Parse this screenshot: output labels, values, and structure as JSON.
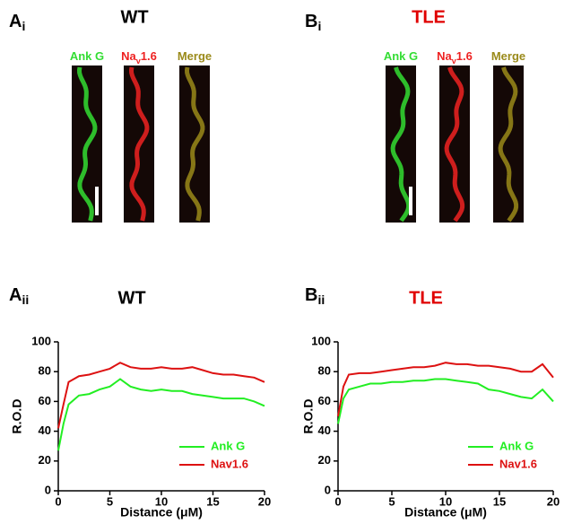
{
  "image_panels": [
    {
      "panel": {
        "letter": "A",
        "sub": "i"
      },
      "title": "WT",
      "title_color": "#000000",
      "channels": [
        {
          "label": {
            "base": "Ank G",
            "sub": "",
            "tail": ""
          },
          "color": "#33dd33"
        },
        {
          "label": {
            "base": "Na",
            "sub": "v",
            "tail": "1.6"
          },
          "color": "#ee2222"
        },
        {
          "label": {
            "base": "Merge",
            "sub": "",
            "tail": ""
          },
          "color": "#9a8a1a"
        }
      ]
    },
    {
      "panel": {
        "letter": "B",
        "sub": "i"
      },
      "title": "TLE",
      "title_color": "#e00000",
      "channels": [
        {
          "label": {
            "base": "Ank G",
            "sub": "",
            "tail": ""
          },
          "color": "#33dd33"
        },
        {
          "label": {
            "base": "Na",
            "sub": "v",
            "tail": "1.6"
          },
          "color": "#ee2222"
        },
        {
          "label": {
            "base": "Merge",
            "sub": "",
            "tail": ""
          },
          "color": "#9a8a1a"
        }
      ]
    }
  ],
  "chart_data": [
    {
      "type": "line",
      "panel": {
        "letter": "A",
        "sub": "ii"
      },
      "title": "WT",
      "title_color": "#000000",
      "xlabel": "Distance (μM)",
      "ylabel": "R.O.D",
      "x": [
        0,
        0.5,
        1,
        2,
        3,
        4,
        5,
        6,
        7,
        8,
        9,
        10,
        11,
        12,
        13,
        14,
        15,
        16,
        17,
        18,
        19,
        20
      ],
      "series": [
        {
          "name": "Ank G",
          "color": "#22ee22",
          "values": [
            27,
            45,
            58,
            64,
            65,
            68,
            70,
            75,
            70,
            68,
            67,
            68,
            67,
            67,
            65,
            64,
            63,
            62,
            62,
            62,
            60,
            57
          ]
        },
        {
          "name": "Nav1.6",
          "color": "#dd1111",
          "values": [
            42,
            58,
            73,
            77,
            78,
            80,
            82,
            86,
            83,
            82,
            82,
            83,
            82,
            82,
            83,
            81,
            79,
            78,
            78,
            77,
            76,
            73
          ]
        }
      ],
      "xlim": [
        0,
        20
      ],
      "ylim": [
        0,
        100
      ],
      "xticks": [
        0,
        5,
        10,
        15,
        20
      ],
      "yticks": [
        0,
        20,
        40,
        60,
        80,
        100
      ],
      "legend": "lower right"
    },
    {
      "type": "line",
      "panel": {
        "letter": "B",
        "sub": "ii"
      },
      "title": "TLE",
      "title_color": "#e00000",
      "xlabel": "Distance (μM)",
      "ylabel": "R.O.D",
      "x": [
        0,
        0.5,
        1,
        2,
        3,
        4,
        5,
        6,
        7,
        8,
        9,
        10,
        11,
        12,
        13,
        14,
        15,
        16,
        17,
        18,
        19,
        20
      ],
      "series": [
        {
          "name": "Ank G",
          "color": "#22ee22",
          "values": [
            45,
            62,
            68,
            70,
            72,
            72,
            73,
            73,
            74,
            74,
            75,
            75,
            74,
            73,
            72,
            68,
            67,
            65,
            63,
            62,
            68,
            60
          ]
        },
        {
          "name": "Nav1.6",
          "color": "#dd1111",
          "values": [
            50,
            70,
            78,
            79,
            79,
            80,
            81,
            82,
            83,
            83,
            84,
            86,
            85,
            85,
            84,
            84,
            83,
            82,
            80,
            80,
            85,
            76
          ]
        }
      ],
      "xlim": [
        0,
        20
      ],
      "ylim": [
        0,
        100
      ],
      "xticks": [
        0,
        5,
        10,
        15,
        20
      ],
      "yticks": [
        0,
        20,
        40,
        60,
        80,
        100
      ],
      "legend": "lower right"
    }
  ]
}
